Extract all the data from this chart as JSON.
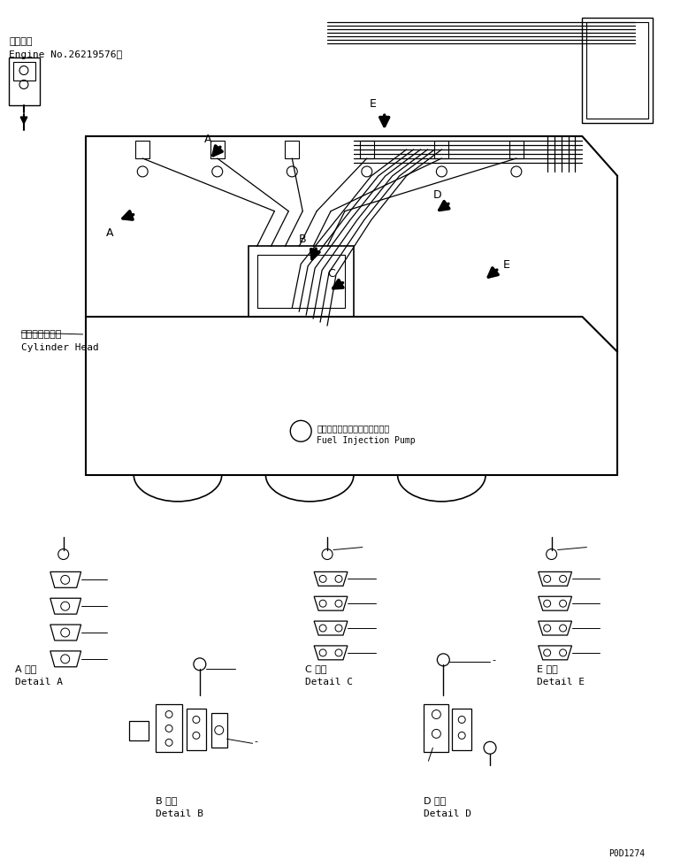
{
  "title": "",
  "background_color": "#ffffff",
  "line_color": "#000000",
  "text_color": "#000000",
  "page_id": "P0D1274",
  "top_left_text_line1": "適用号機",
  "top_left_text_line2": "Engine No.26219576～",
  "cylinder_head_jp": "シリンダヘッド",
  "cylinder_head_en": "Cylinder Head",
  "pump_jp": "フェルインジェクションポンプ",
  "pump_en": "Fuel Injection Pump",
  "detail_a_jp": "A 詳細",
  "detail_a_en": "Detail A",
  "detail_b_jp": "B 詳細",
  "detail_b_en": "Detail B",
  "detail_c_jp": "C 詳細",
  "detail_c_en": "Detail C",
  "detail_d_jp": "D 詳細",
  "detail_d_en": "Detail D",
  "detail_e_jp": "E 詳細",
  "detail_e_en": "Detail E",
  "label_A": "A",
  "label_B": "B",
  "label_C": "C",
  "label_D": "D",
  "label_E": "E",
  "font_size_small": 7,
  "font_size_medium": 8,
  "font_size_label": 9
}
